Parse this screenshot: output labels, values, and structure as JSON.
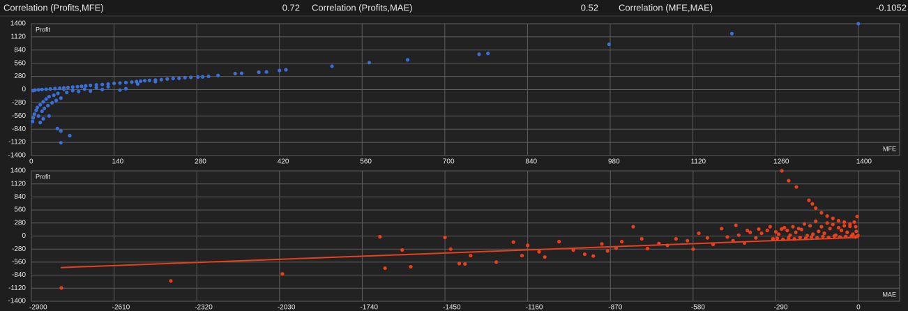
{
  "header": {
    "items": [
      {
        "label": "Correlation (Profits,MFE)",
        "value": 0.72
      },
      {
        "label": "Correlation (Profits,MAE)",
        "value": 0.52
      },
      {
        "label": "Correlation (MFE,MAE)",
        "value": -0.1052
      }
    ]
  },
  "chart_data": [
    {
      "type": "scatter",
      "y_label": "Profit",
      "x_label": "MFE",
      "color": "#3a6fd8",
      "grid": true,
      "xlim": [
        0,
        1470
      ],
      "ylim": [
        -1400,
        1400
      ],
      "xticks": [
        0,
        140,
        280,
        420,
        560,
        700,
        840,
        980,
        1120,
        1260,
        1400
      ],
      "yticks": [
        -1400,
        -1120,
        -840,
        -560,
        -280,
        0,
        280,
        560,
        840,
        1120,
        1400
      ],
      "x": [
        1400,
        1186,
        978,
        758,
        773,
        637,
        572,
        509,
        431,
        420,
        398,
        385,
        356,
        345,
        316,
        300,
        290,
        282,
        270,
        260,
        250,
        240,
        230,
        220,
        210,
        200,
        192,
        185,
        178,
        170,
        160,
        150,
        140,
        130,
        120,
        110,
        100,
        92,
        85,
        78,
        70,
        62,
        55,
        48,
        40,
        32,
        25,
        18,
        12,
        6,
        3,
        160,
        150,
        120,
        100,
        90,
        80,
        70,
        60,
        55,
        45,
        38,
        30,
        25,
        20,
        15,
        10,
        8,
        5,
        3,
        2,
        12,
        18,
        22,
        28,
        35,
        42,
        50,
        30,
        20,
        44,
        50,
        65,
        50,
        15,
        110,
        130,
        180,
        210
      ],
      "values": [
        1400,
        1189,
        963,
        752,
        768,
        632,
        572,
        497,
        421,
        406,
        376,
        370,
        346,
        341,
        300,
        282,
        270,
        268,
        260,
        255,
        240,
        236,
        226,
        212,
        205,
        196,
        190,
        180,
        170,
        160,
        150,
        140,
        132,
        118,
        108,
        100,
        90,
        80,
        70,
        62,
        55,
        45,
        38,
        30,
        22,
        15,
        8,
        2,
        -5,
        -10,
        -20,
        20,
        -10,
        0,
        -30,
        10,
        -40,
        -20,
        -60,
        10,
        -80,
        -120,
        -150,
        -200,
        -260,
        -320,
        -380,
        -440,
        -520,
        -600,
        -680,
        -560,
        -460,
        -400,
        -340,
        -280,
        -230,
        -180,
        -560,
        -620,
        -828,
        -880,
        -978,
        -1129,
        -700,
        40,
        60,
        120,
        170
      ]
    },
    {
      "type": "scatter",
      "y_label": "Profit",
      "x_label": "MAE",
      "color": "#e8401c",
      "grid": true,
      "xlim": [
        -2900,
        144
      ],
      "ylim": [
        -1400,
        1400
      ],
      "xticks": [
        -2900,
        -2610,
        -2320,
        -2030,
        -1740,
        -1450,
        -1160,
        -870,
        -580,
        -290,
        0
      ],
      "yticks": [
        -1400,
        -1120,
        -840,
        -560,
        -280,
        0,
        280,
        560,
        840,
        1120,
        1400
      ],
      "x": [
        -2795,
        -2411,
        -2020,
        -1678,
        -1600,
        -1660,
        -1570,
        -1450,
        -1400,
        -1430,
        -1360,
        -1380,
        -1270,
        -1210,
        -1180,
        -1160,
        -1120,
        -1100,
        -1050,
        -1000,
        -960,
        -930,
        -900,
        -880,
        -850,
        -830,
        -790,
        -760,
        -740,
        -700,
        -670,
        -640,
        -600,
        -580,
        -560,
        -530,
        -510,
        -480,
        -460,
        -440,
        -420,
        -400,
        -380,
        -360,
        -340,
        -320,
        -300,
        -280,
        -260,
        -240,
        -220,
        -200,
        -180,
        -160,
        -140,
        -120,
        -100,
        -80,
        -60,
        -40,
        -20,
        -10,
        -5,
        -15,
        -30,
        -50,
        -70,
        -90,
        -110,
        -130,
        -150,
        -170,
        -190,
        -210,
        -230,
        -250,
        -270,
        -290,
        -310,
        -350,
        -390,
        -430,
        -269,
        -245,
        -218,
        -174,
        -162,
        -150,
        -130,
        -110,
        -90,
        -70,
        -50,
        -30,
        -8,
        -2,
        -12,
        -25,
        -45,
        -65,
        -85,
        -105,
        -125,
        -145,
        -165,
        -185,
        -205,
        -225,
        -245,
        -265,
        -285
      ],
      "values": [
        -1114,
        -963,
        -812,
        -15,
        -300,
        -690,
        -660,
        -30,
        -590,
        -280,
        -420,
        -600,
        -560,
        -130,
        -420,
        -200,
        -340,
        -450,
        -120,
        -300,
        -390,
        -430,
        -170,
        -320,
        -260,
        -120,
        200,
        -60,
        -270,
        -160,
        -200,
        -60,
        -100,
        -280,
        60,
        -40,
        -180,
        160,
        -20,
        -100,
        20,
        -150,
        80,
        -40,
        60,
        120,
        -60,
        40,
        180,
        20,
        80,
        140,
        10,
        40,
        100,
        60,
        160,
        20,
        120,
        80,
        40,
        200,
        420,
        300,
        260,
        220,
        180,
        250,
        280,
        200,
        320,
        220,
        260,
        160,
        200,
        120,
        150,
        90,
        200,
        150,
        120,
        230,
        1400,
        1189,
        1053,
        767,
        692,
        600,
        500,
        430,
        380,
        330,
        300,
        210,
        100,
        10,
        -20,
        0,
        -10,
        -20,
        0,
        -30,
        -10,
        -40,
        -20,
        -50,
        -30,
        -60,
        -40,
        -70,
        -50
      ],
      "trendline": {
        "x": [
          -2797,
          0
        ],
        "values": [
          -677,
          -30
        ],
        "color": "#e8401c"
      }
    }
  ]
}
